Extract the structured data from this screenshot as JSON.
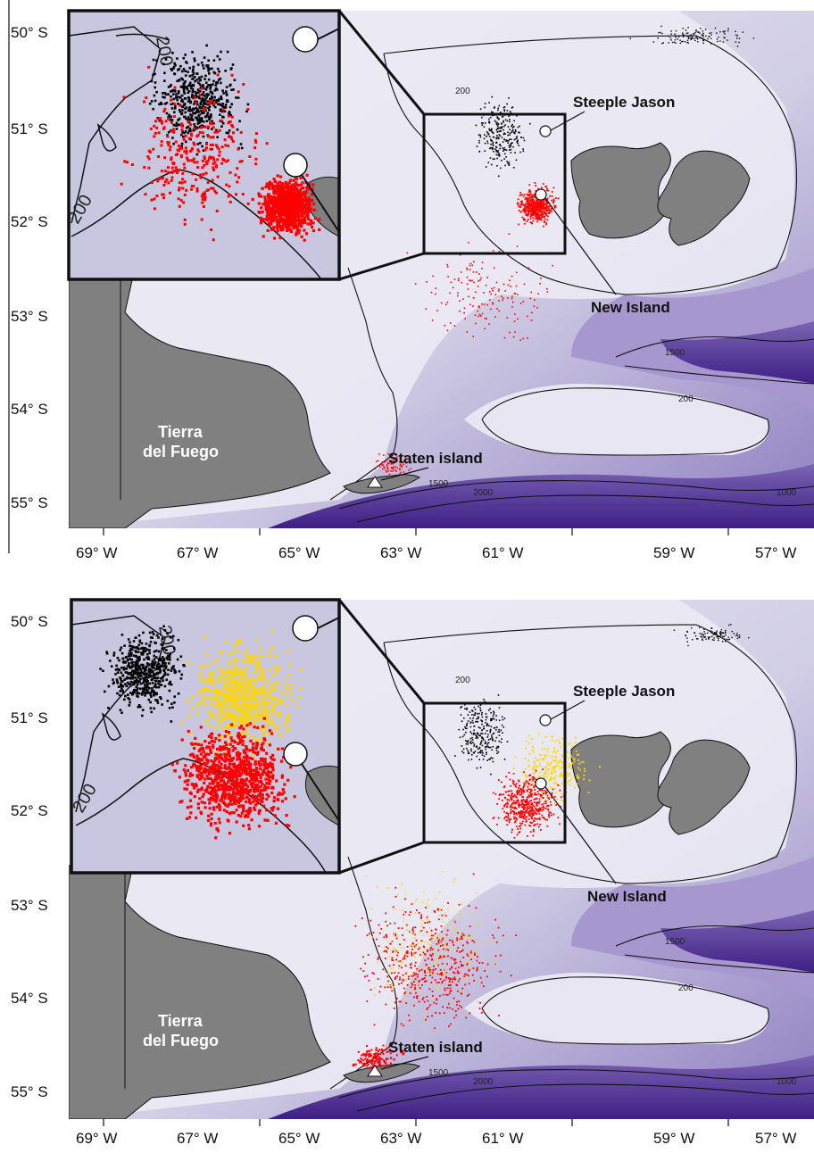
{
  "latitudes": [
    "50° S",
    "51° S",
    "52° S",
    "53° S",
    "54° S",
    "55° S"
  ],
  "longitudes": [
    "69° W",
    "67° W",
    "65° W",
    "63° W",
    "61° W",
    "59° W",
    "57° W"
  ],
  "places": {
    "steeple_jason": "Steeple Jason",
    "new_island": "New Island",
    "staten_island": "Staten island",
    "tierra_line1": "Tierra",
    "tierra_line2": "del Fuego"
  },
  "contours": {
    "c200": "200",
    "c1500": "1500",
    "c2000": "2000",
    "c1000": "1000"
  },
  "colors": {
    "ocean_shallow": "#e6e6f2",
    "ocean_deep": "#4b2a8c",
    "land": "#808080",
    "track_black": "#000000",
    "track_red": "#ff0000",
    "track_yellow": "#ffd700"
  },
  "panels": [
    {
      "id": "top",
      "series": [
        "black",
        "red"
      ]
    },
    {
      "id": "bottom",
      "series": [
        "black",
        "red",
        "yellow"
      ]
    }
  ]
}
